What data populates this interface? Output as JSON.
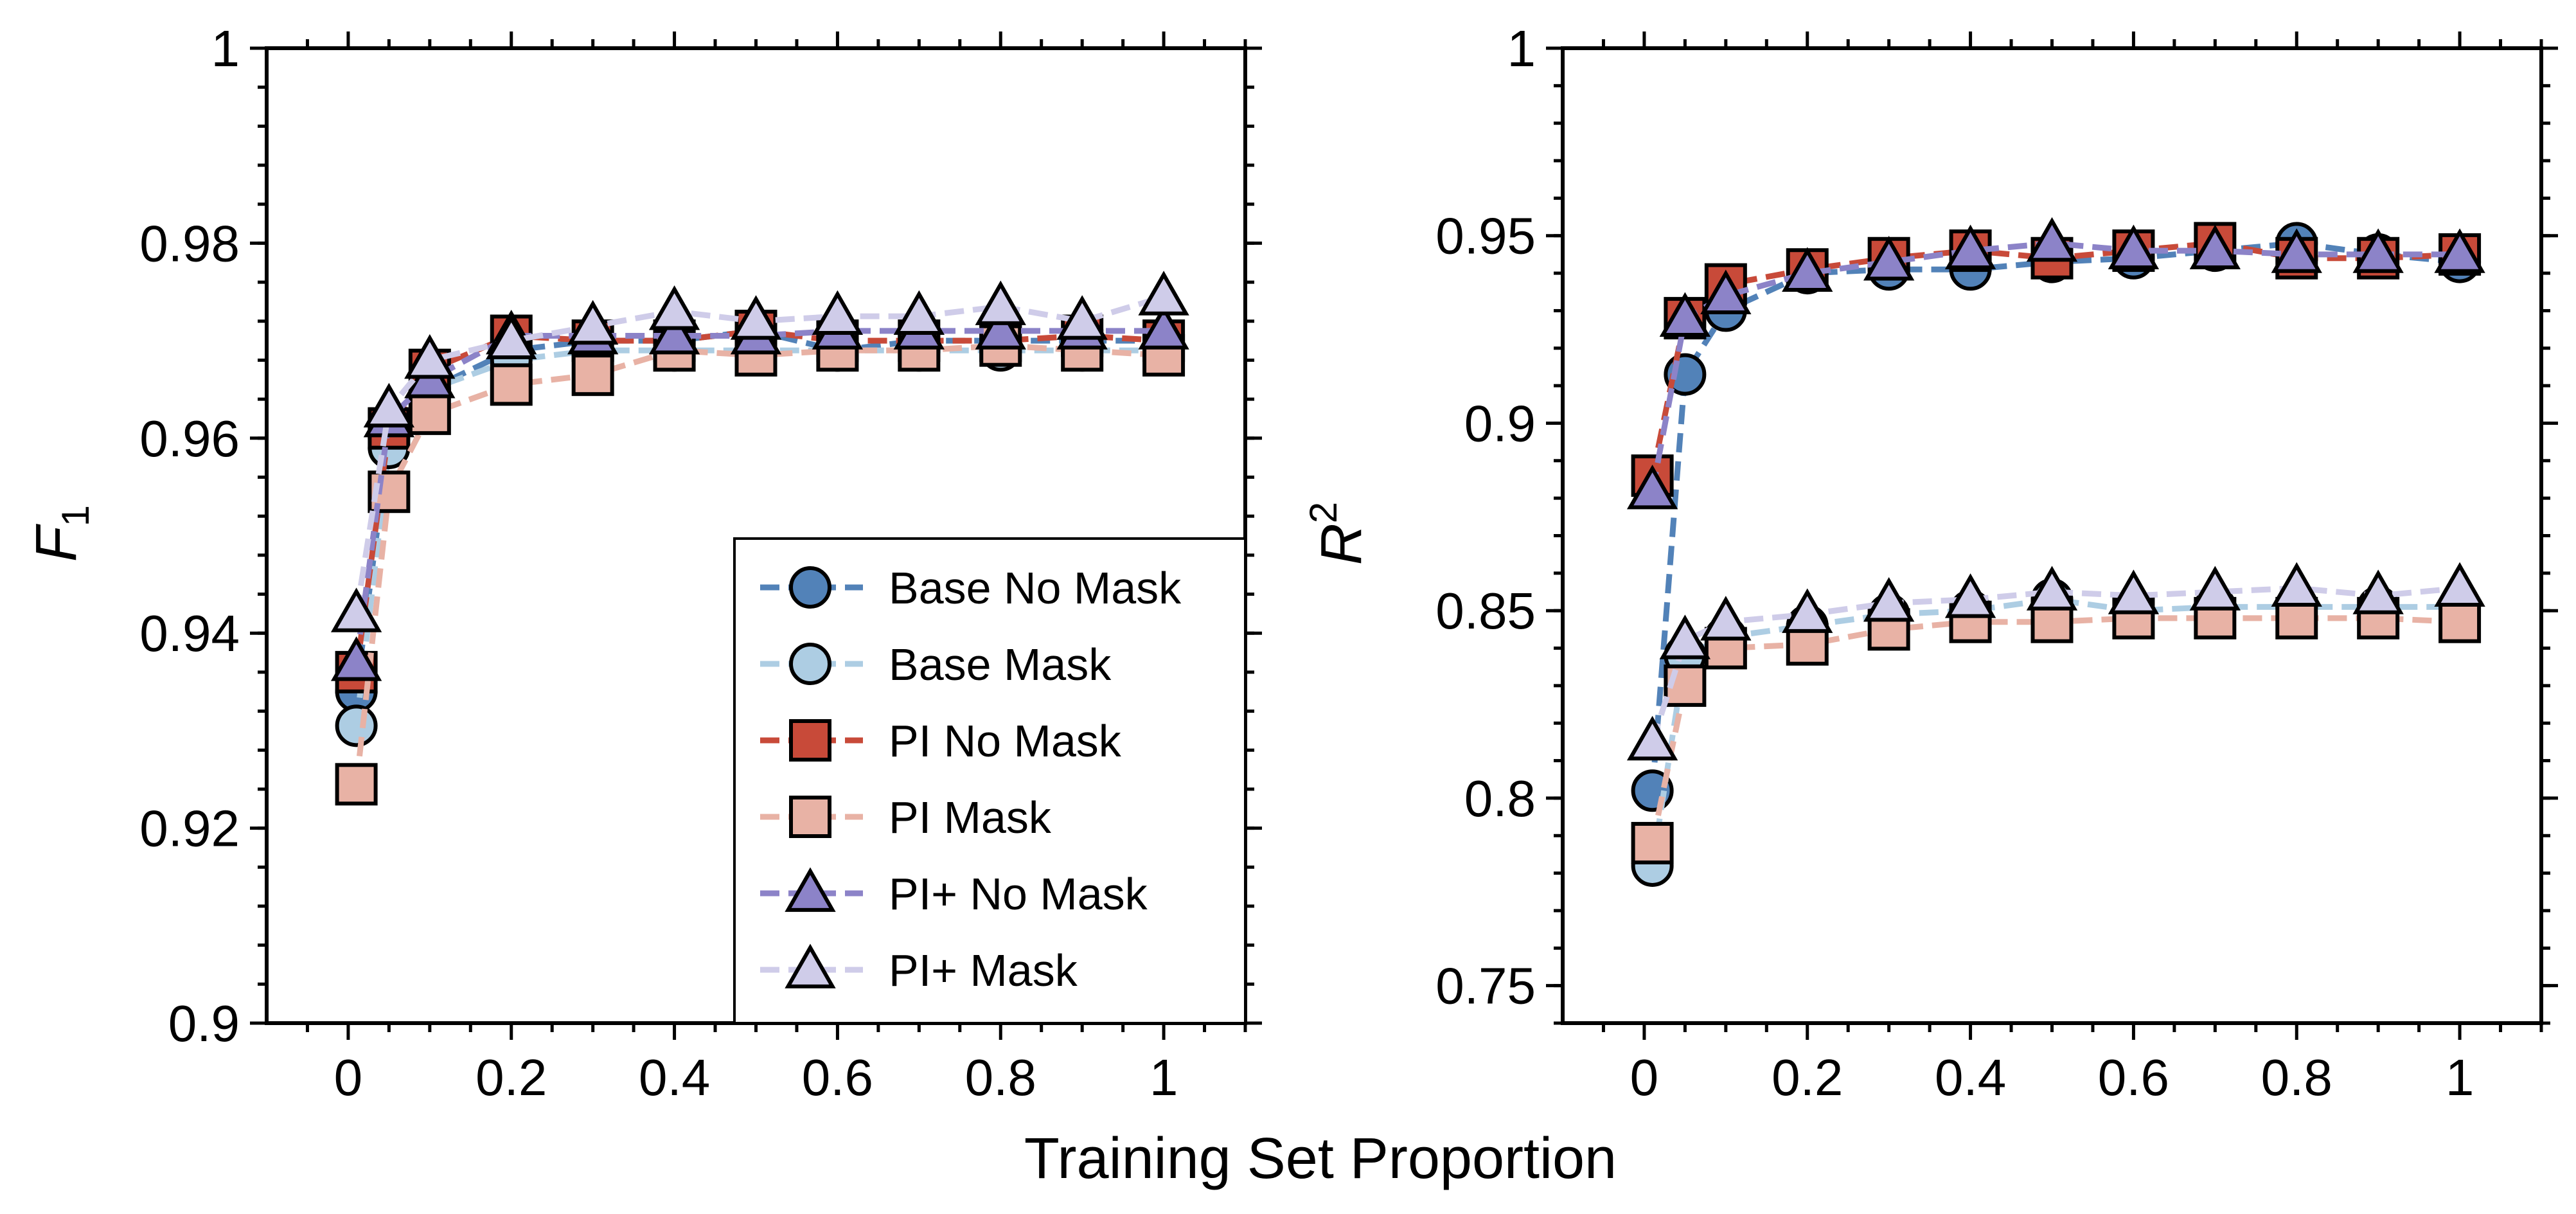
{
  "figure": {
    "shared_xlabel": "Training Set Proportion"
  },
  "legend": {
    "location": "lower-right of left panel",
    "entries": [
      {
        "label": "Base No Mask",
        "series_key": "base_no_mask"
      },
      {
        "label": "Base Mask",
        "series_key": "base_mask"
      },
      {
        "label": "PI No Mask",
        "series_key": "pi_no_mask"
      },
      {
        "label": "PI Mask",
        "series_key": "pi_mask"
      },
      {
        "label": "PI+ No Mask",
        "series_key": "piplus_no_mask"
      },
      {
        "label": "PI+ Mask",
        "series_key": "piplus_mask"
      }
    ]
  },
  "series_styles": {
    "base_no_mask": {
      "color": "#5282b8",
      "marker": "circle"
    },
    "base_mask": {
      "color": "#adcde3",
      "marker": "circle"
    },
    "pi_no_mask": {
      "color": "#c84a39",
      "marker": "square"
    },
    "pi_mask": {
      "color": "#e8b2a5",
      "marker": "square"
    },
    "piplus_no_mask": {
      "color": "#8c83c8",
      "marker": "triangle"
    },
    "piplus_mask": {
      "color": "#cfcce9",
      "marker": "triangle"
    }
  },
  "chart_data": [
    {
      "type": "line",
      "ylabel": "F",
      "ylabel_sub": "1",
      "xlim": [
        -0.1,
        1.1
      ],
      "ylim": [
        0.9,
        1.0
      ],
      "x_ticks": [
        0,
        0.2,
        0.4,
        0.6,
        0.8,
        1
      ],
      "x_tick_labels": [
        "0",
        "0.2",
        "0.4",
        "0.6",
        "0.8",
        "1"
      ],
      "y_ticks": [
        0.9,
        0.92,
        0.94,
        0.96,
        0.98,
        1.0
      ],
      "y_tick_labels": [
        "0.9",
        "0.92",
        "0.94",
        "0.96",
        "0.98",
        "1"
      ],
      "grid": false,
      "x": [
        0.01,
        0.05,
        0.1,
        0.2,
        0.3,
        0.4,
        0.5,
        0.6,
        0.7,
        0.8,
        0.9,
        1.0
      ],
      "series": [
        {
          "key": "base_no_mask",
          "name": "Base No Mask",
          "values": [
            0.934,
            0.96,
            0.965,
            0.969,
            0.97,
            0.97,
            0.971,
            0.969,
            0.97,
            0.97,
            0.97,
            0.97
          ]
        },
        {
          "key": "base_mask",
          "name": "Base Mask",
          "values": [
            0.9305,
            0.959,
            0.965,
            0.968,
            0.969,
            0.969,
            0.969,
            0.969,
            0.969,
            0.969,
            0.969,
            0.969
          ]
        },
        {
          "key": "pi_no_mask",
          "name": "PI No Mask",
          "values": [
            0.936,
            0.961,
            0.967,
            0.9705,
            0.97,
            0.97,
            0.971,
            0.97,
            0.97,
            0.97,
            0.9705,
            0.97
          ]
        },
        {
          "key": "pi_mask",
          "name": "PI Mask",
          "values": [
            0.9245,
            0.9545,
            0.9625,
            0.9655,
            0.9665,
            0.969,
            0.9685,
            0.969,
            0.969,
            0.9695,
            0.969,
            0.9685
          ]
        },
        {
          "key": "piplus_no_mask",
          "name": "PI+ No Mask",
          "values": [
            0.937,
            0.962,
            0.966,
            0.9705,
            0.9705,
            0.9705,
            0.9705,
            0.971,
            0.971,
            0.971,
            0.971,
            0.971
          ]
        },
        {
          "key": "piplus_mask",
          "name": "PI+ Mask",
          "values": [
            0.942,
            0.963,
            0.968,
            0.97,
            0.9715,
            0.973,
            0.972,
            0.9725,
            0.9725,
            0.9735,
            0.972,
            0.9745
          ]
        }
      ]
    },
    {
      "type": "line",
      "ylabel": "R",
      "ylabel_sup": "2",
      "xlim": [
        -0.1,
        1.1
      ],
      "ylim": [
        0.74,
        1.0
      ],
      "x_ticks": [
        0,
        0.2,
        0.4,
        0.6,
        0.8,
        1
      ],
      "x_tick_labels": [
        "0",
        "0.2",
        "0.4",
        "0.6",
        "0.8",
        "1"
      ],
      "y_ticks": [
        0.75,
        0.8,
        0.85,
        0.9,
        0.95,
        1.0
      ],
      "y_tick_labels": [
        "0.75",
        "0.8",
        "0.85",
        "0.9",
        "0.95",
        "1"
      ],
      "grid": false,
      "x": [
        0.01,
        0.05,
        0.1,
        0.2,
        0.3,
        0.4,
        0.5,
        0.6,
        0.7,
        0.8,
        0.9,
        1.0
      ],
      "series": [
        {
          "key": "base_no_mask",
          "name": "Base No Mask",
          "values": [
            0.802,
            0.913,
            0.93,
            0.94,
            0.941,
            0.941,
            0.943,
            0.944,
            0.946,
            0.948,
            0.945,
            0.943
          ]
        },
        {
          "key": "base_mask",
          "name": "Base Mask",
          "values": [
            0.782,
            0.838,
            0.843,
            0.846,
            0.849,
            0.85,
            0.853,
            0.85,
            0.851,
            0.851,
            0.851,
            0.851
          ]
        },
        {
          "key": "pi_no_mask",
          "name": "PI No Mask",
          "values": [
            0.886,
            0.928,
            0.937,
            0.941,
            0.944,
            0.946,
            0.944,
            0.946,
            0.948,
            0.944,
            0.944,
            0.945
          ]
        },
        {
          "key": "pi_mask",
          "name": "PI Mask",
          "values": [
            0.788,
            0.83,
            0.84,
            0.841,
            0.845,
            0.847,
            0.847,
            0.848,
            0.848,
            0.848,
            0.848,
            0.847
          ]
        },
        {
          "key": "piplus_no_mask",
          "name": "PI+ No Mask",
          "values": [
            0.882,
            0.928,
            0.934,
            0.94,
            0.943,
            0.946,
            0.948,
            0.946,
            0.946,
            0.945,
            0.945,
            0.945
          ]
        },
        {
          "key": "piplus_mask",
          "name": "PI+ Mask",
          "values": [
            0.815,
            0.842,
            0.847,
            0.849,
            0.852,
            0.853,
            0.855,
            0.854,
            0.855,
            0.856,
            0.854,
            0.856
          ]
        }
      ]
    }
  ]
}
